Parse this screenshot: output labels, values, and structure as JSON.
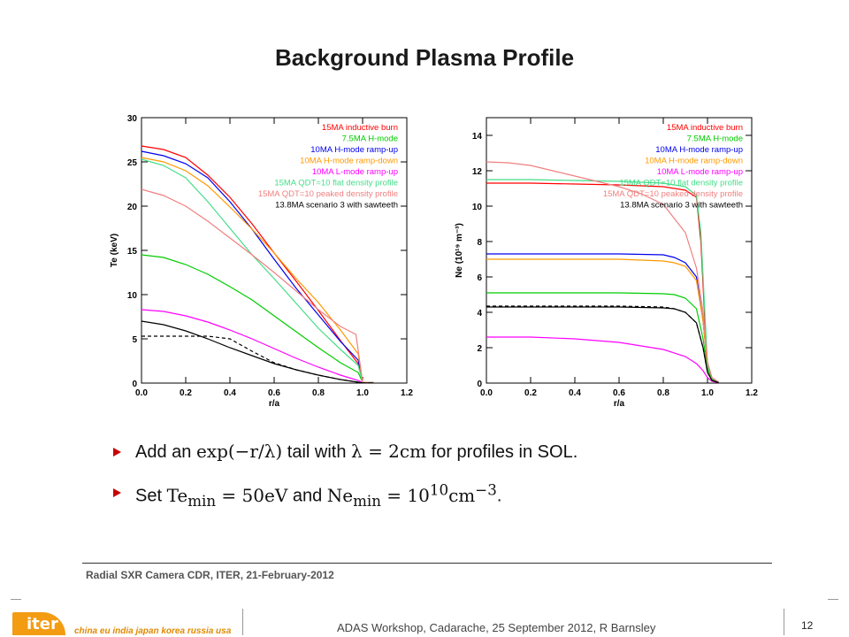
{
  "slide": {
    "title": "Background Plasma Profile",
    "bullets": [
      {
        "pre": "Add an ",
        "m1": "exp(−r/λ)",
        "mid": " tail with ",
        "m2": "λ = 2cm",
        "post": " for profiles in SOL."
      },
      {
        "pre": "Set ",
        "m1": "Te",
        "m1sub": "min",
        "m1rest": " = 50eV",
        "mid": " and ",
        "m2": "Ne",
        "m2sub": "min",
        "m2rest": " = 10",
        "m2sup": "10",
        "m2tail": "cm",
        "m2tailsup": "−3",
        "post": "."
      }
    ],
    "footer_ref": "Radial SXR Camera CDR, ITER, 21-February-2012",
    "logo_text": "iter",
    "partners": "china eu india japan korea russia usa",
    "workshop": "ADAS Workshop, Cadarache, 25 September 2012, R Barnsley",
    "page_number": "12",
    "colors": {
      "bullet": "#cc0000",
      "logo": "#f39c12"
    }
  },
  "chart_data": [
    {
      "type": "line",
      "xlabel": "r/a",
      "ylabel": "Te (keV)",
      "xlim": [
        0,
        1.2
      ],
      "ylim": [
        0,
        30
      ],
      "xticks": [
        0.0,
        0.2,
        0.4,
        0.6,
        0.8,
        1.0,
        1.2
      ],
      "yticks": [
        0,
        5,
        10,
        15,
        20,
        25,
        30
      ],
      "legend_position": "top-right",
      "series": [
        {
          "name": "15MA inductive burn",
          "color": "#ff0000",
          "x": [
            0,
            0.1,
            0.2,
            0.3,
            0.4,
            0.5,
            0.6,
            0.7,
            0.8,
            0.9,
            0.98,
            1.0,
            1.05
          ],
          "y": [
            26.8,
            26.4,
            25.5,
            23.5,
            21.0,
            18.0,
            14.7,
            11.5,
            8.2,
            4.8,
            2.2,
            0.1,
            0.05
          ]
        },
        {
          "name": "7.5MA H-mode",
          "color": "#00cc00",
          "x": [
            0,
            0.1,
            0.2,
            0.3,
            0.4,
            0.5,
            0.6,
            0.7,
            0.8,
            0.9,
            0.98,
            1.0,
            1.05
          ],
          "y": [
            14.5,
            14.2,
            13.4,
            12.3,
            10.9,
            9.4,
            7.6,
            5.8,
            4.0,
            2.3,
            1.2,
            0.1,
            0.05
          ]
        },
        {
          "name": "10MA H-mode ramp-up",
          "color": "#0000ee",
          "x": [
            0,
            0.1,
            0.2,
            0.3,
            0.4,
            0.5,
            0.6,
            0.7,
            0.8,
            0.9,
            0.98,
            1.0,
            1.05
          ],
          "y": [
            26.2,
            25.7,
            24.8,
            23.2,
            20.5,
            17.4,
            14.0,
            10.7,
            7.7,
            4.7,
            2.6,
            0.1,
            0.05
          ]
        },
        {
          "name": "10MA H-mode ramp-down",
          "color": "#ff9900",
          "x": [
            0,
            0.1,
            0.2,
            0.3,
            0.4,
            0.5,
            0.6,
            0.7,
            0.8,
            0.9,
            0.98,
            1.0,
            1.05
          ],
          "y": [
            25.5,
            25.0,
            24.0,
            22.3,
            19.9,
            17.4,
            14.7,
            11.8,
            9.1,
            6.0,
            3.3,
            0.1,
            0.05
          ]
        },
        {
          "name": "10MA L-mode ramp-up",
          "color": "#ff00ff",
          "x": [
            0,
            0.1,
            0.2,
            0.3,
            0.4,
            0.5,
            0.6,
            0.7,
            0.8,
            0.9,
            0.98,
            1.0,
            1.05
          ],
          "y": [
            8.3,
            8.1,
            7.6,
            6.9,
            6.0,
            5.0,
            3.9,
            2.8,
            1.8,
            0.9,
            0.3,
            0.05,
            0.02
          ]
        },
        {
          "name": "15MA QDT=10 flat density profile",
          "color": "#44dd88",
          "x": [
            0,
            0.1,
            0.2,
            0.3,
            0.4,
            0.5,
            0.6,
            0.7,
            0.8,
            0.9,
            0.98,
            1.0,
            1.05
          ],
          "y": [
            25.3,
            24.6,
            23.2,
            20.5,
            17.5,
            14.5,
            11.8,
            9.0,
            6.2,
            3.8,
            2.0,
            0.1,
            0.05
          ]
        },
        {
          "name": "15MA QDT=10 peaked density profile",
          "color": "#f08080",
          "x": [
            0,
            0.1,
            0.2,
            0.3,
            0.4,
            0.5,
            0.6,
            0.7,
            0.8,
            0.9,
            0.97,
            1.0,
            1.05
          ],
          "y": [
            21.9,
            21.2,
            20.0,
            18.3,
            16.4,
            14.5,
            12.5,
            10.4,
            8.3,
            6.4,
            5.5,
            0.1,
            0.05
          ]
        },
        {
          "name": "13.8MA scenario 3 with sawteeth",
          "color": "#000000",
          "x": [
            0,
            0.1,
            0.2,
            0.3,
            0.4,
            0.5,
            0.6,
            0.7,
            0.8,
            0.9,
            0.98,
            1.0,
            1.05
          ],
          "y": [
            7.0,
            6.6,
            5.9,
            5.0,
            4.0,
            3.1,
            2.2,
            1.5,
            0.9,
            0.4,
            0.1,
            0.02,
            0.01
          ]
        },
        {
          "dashed": true,
          "color": "#000000",
          "x": [
            0,
            0.1,
            0.2,
            0.3,
            0.4,
            0.5,
            0.6,
            0.7,
            0.8,
            0.9,
            0.98,
            1.0,
            1.05
          ],
          "y": [
            5.3,
            5.3,
            5.3,
            5.3,
            5.0,
            3.6,
            2.3,
            1.5,
            0.9,
            0.4,
            0.1,
            0.02,
            0.01
          ]
        }
      ]
    },
    {
      "type": "line",
      "xlabel": "r/a",
      "ylabel": "Ne (10¹⁹ m⁻³)",
      "xlim": [
        0,
        1.2
      ],
      "ylim": [
        0,
        15
      ],
      "xticks": [
        0.0,
        0.2,
        0.4,
        0.6,
        0.8,
        1.0,
        1.2
      ],
      "yticks": [
        0,
        2,
        4,
        6,
        8,
        10,
        12,
        14
      ],
      "legend_position": "top-right",
      "series": [
        {
          "name": "15MA inductive burn",
          "color": "#ff0000",
          "x": [
            0,
            0.2,
            0.4,
            0.6,
            0.8,
            0.9,
            0.95,
            0.97,
            0.99,
            1.0,
            1.02,
            1.05
          ],
          "y": [
            11.3,
            11.3,
            11.25,
            11.2,
            11.1,
            10.9,
            10.5,
            8.0,
            3.0,
            1.0,
            0.3,
            0.05
          ]
        },
        {
          "name": "7.5MA H-mode",
          "color": "#00cc00",
          "x": [
            0,
            0.2,
            0.4,
            0.6,
            0.8,
            0.85,
            0.9,
            0.95,
            0.98,
            1.0,
            1.02,
            1.05
          ],
          "y": [
            5.1,
            5.1,
            5.1,
            5.1,
            5.05,
            5.0,
            4.8,
            4.2,
            2.5,
            0.8,
            0.2,
            0.05
          ]
        },
        {
          "name": "10MA H-mode ramp-up",
          "color": "#0000ee",
          "x": [
            0,
            0.2,
            0.4,
            0.6,
            0.8,
            0.85,
            0.9,
            0.95,
            0.98,
            1.0,
            1.02,
            1.05
          ],
          "y": [
            7.3,
            7.3,
            7.3,
            7.3,
            7.25,
            7.1,
            6.8,
            6.0,
            3.5,
            1.0,
            0.3,
            0.05
          ]
        },
        {
          "name": "10MA H-mode ramp-down",
          "color": "#ff9900",
          "x": [
            0,
            0.2,
            0.4,
            0.6,
            0.8,
            0.85,
            0.9,
            0.95,
            0.98,
            1.0,
            1.02,
            1.05
          ],
          "y": [
            7.0,
            7.0,
            7.0,
            7.0,
            6.9,
            6.8,
            6.6,
            5.8,
            3.5,
            1.0,
            0.3,
            0.05
          ]
        },
        {
          "name": "10MA L-mode ramp-up",
          "color": "#ff00ff",
          "x": [
            0,
            0.2,
            0.4,
            0.6,
            0.8,
            0.9,
            0.95,
            0.98,
            1.0,
            1.02,
            1.05
          ],
          "y": [
            2.6,
            2.6,
            2.5,
            2.3,
            1.9,
            1.5,
            1.1,
            0.7,
            0.3,
            0.1,
            0.02
          ]
        },
        {
          "name": "15MA QDT=10 flat density profile",
          "color": "#44dd88",
          "x": [
            0,
            0.2,
            0.4,
            0.6,
            0.8,
            0.9,
            0.95,
            0.97,
            0.99,
            1.0,
            1.02,
            1.05
          ],
          "y": [
            11.5,
            11.5,
            11.45,
            11.4,
            11.3,
            11.1,
            10.6,
            8.5,
            3.5,
            1.0,
            0.3,
            0.05
          ]
        },
        {
          "name": "15MA QDT=10 peaked density profile",
          "color": "#f08080",
          "x": [
            0,
            0.1,
            0.2,
            0.3,
            0.4,
            0.5,
            0.6,
            0.7,
            0.8,
            0.9,
            0.95,
            0.98,
            1.0,
            1.02,
            1.05
          ],
          "y": [
            12.5,
            12.45,
            12.3,
            12.0,
            11.7,
            11.4,
            11.1,
            10.7,
            10.1,
            8.5,
            6.5,
            4.0,
            1.2,
            0.3,
            0.05
          ]
        },
        {
          "name": "13.8MA scenario 3 with sawteeth",
          "color": "#000000",
          "x": [
            0,
            0.2,
            0.4,
            0.6,
            0.8,
            0.85,
            0.9,
            0.95,
            0.98,
            1.0,
            1.02,
            1.05
          ],
          "y": [
            4.3,
            4.3,
            4.3,
            4.3,
            4.25,
            4.2,
            4.0,
            3.4,
            2.0,
            0.6,
            0.15,
            0.03
          ]
        },
        {
          "dashed": true,
          "color": "#000000",
          "x": [
            0,
            0.2,
            0.4,
            0.6,
            0.8,
            0.85,
            0.9,
            0.95,
            0.98,
            1.0,
            1.02,
            1.05
          ],
          "y": [
            4.35,
            4.35,
            4.35,
            4.35,
            4.3,
            4.2,
            4.0,
            3.4,
            2.0,
            0.6,
            0.15,
            0.03
          ]
        }
      ]
    }
  ]
}
